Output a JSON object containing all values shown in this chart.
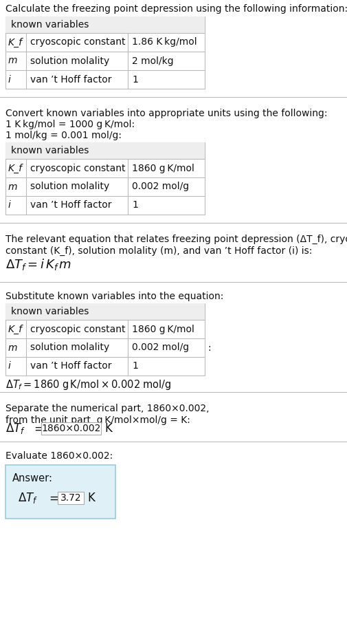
{
  "title_text": "Calculate the freezing point depression using the following information:",
  "section1_table_header": "known variables",
  "section1_rows": [
    [
      "K_f",
      "cryoscopic constant",
      "1.86 K kg/mol"
    ],
    [
      "m",
      "solution molality",
      "2 mol/kg"
    ],
    [
      "i",
      "van ’t Hoff factor",
      "1"
    ]
  ],
  "section2_intro_lines": [
    "Convert known variables into appropriate units using the following:",
    "1 K kg/mol = 1000 g K/mol:",
    "1 mol/kg = 0.001 mol/g:"
  ],
  "section2_table_header": "known variables",
  "section2_rows": [
    [
      "K_f",
      "cryoscopic constant",
      "1860 g K/mol"
    ],
    [
      "m",
      "solution molality",
      "0.002 mol/g"
    ],
    [
      "i",
      "van ’t Hoff factor",
      "1"
    ]
  ],
  "section3_intro_lines": [
    "The relevant equation that relates freezing point depression (ΔT_f), cryoscopic",
    "constant (K_f), solution molality (m), and van ’t Hoff factor (i) is:"
  ],
  "section4_intro": "Substitute known variables into the equation:",
  "section4_table_header": "known variables",
  "section4_rows": [
    [
      "K_f",
      "cryoscopic constant",
      "1860 g K/mol"
    ],
    [
      "m",
      "solution molality",
      "0.002 mol/g"
    ],
    [
      "i",
      "van ’t Hoff factor",
      "1"
    ]
  ],
  "section5_intro_lines": [
    "Separate the numerical part, 1860×0.002,",
    "from the unit part, g K/mol×mol/g = K:"
  ],
  "section6_intro": "Evaluate 1860×0.002:",
  "answer_label": "Answer:",
  "bg_color": "#ffffff",
  "table_header_bg": "#eeeeee",
  "table_border": "#bbbbbb",
  "answer_bg": "#dff0f7",
  "answer_border": "#99ccdd",
  "separator_color": "#bbbbbb",
  "text_color": "#111111",
  "highlight_box_border": "#aaaaaa"
}
